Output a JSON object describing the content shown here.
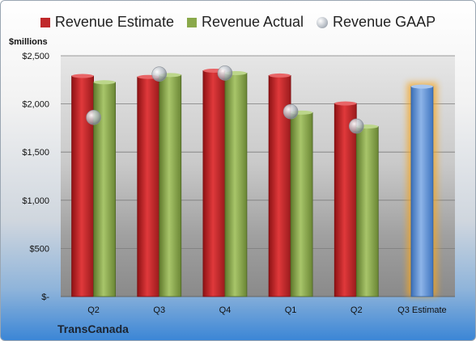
{
  "company": "TransCanada",
  "unit_label": "$millions",
  "legend": [
    {
      "label": "Revenue Estimate",
      "color": "#c0282a",
      "shape": "square"
    },
    {
      "label": "Revenue Actual",
      "color": "#8aa94a",
      "shape": "square"
    },
    {
      "label": "Revenue GAAP",
      "color": "#b8bec6",
      "shape": "circle"
    }
  ],
  "chart_data": {
    "type": "bar",
    "categories": [
      "Q2",
      "Q3",
      "Q4",
      "Q1",
      "Q2",
      "Q3 Estimate"
    ],
    "series": [
      {
        "name": "Revenue Estimate",
        "values": [
          2290,
          2280,
          2345,
          2295,
          2005,
          null
        ]
      },
      {
        "name": "Revenue Actual",
        "values": [
          2225,
          2300,
          2320,
          1910,
          1765,
          2180
        ]
      },
      {
        "name": "Revenue GAAP",
        "values": [
          1860,
          2310,
          2320,
          1920,
          1770,
          null
        ]
      }
    ],
    "ylim": [
      0,
      2500
    ],
    "yticks": [
      0,
      500,
      1000,
      1500,
      2000,
      2500
    ],
    "ytick_labels": [
      "$-",
      "$500",
      "$1,000",
      "$1,500",
      "$2,000",
      "$2,500"
    ],
    "grid": true,
    "legend_position": "top",
    "colors": {
      "estimate": "#c0282a",
      "actual": "#8aa94a",
      "gaap": "#b8bec6",
      "projected": "#5b8fd6",
      "projected_glow": "#f5a623"
    }
  }
}
